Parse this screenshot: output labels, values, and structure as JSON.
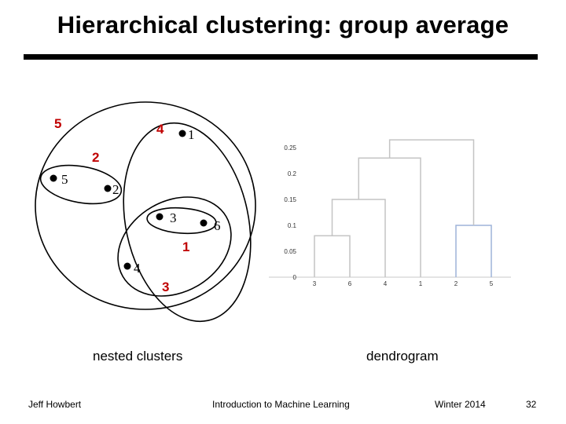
{
  "slide": {
    "title": "Hierarchical clustering: group average",
    "caption_left": "nested clusters",
    "caption_right": "dendrogram"
  },
  "footer": {
    "author": "Jeff Howbert",
    "course": "Introduction to Machine Learning",
    "term": "Winter 2014",
    "page": "32"
  },
  "nested_clusters": {
    "points": [
      {
        "label": "1"
      },
      {
        "label": "2"
      },
      {
        "label": "3"
      },
      {
        "label": "4"
      },
      {
        "label": "5"
      },
      {
        "label": "6"
      }
    ],
    "merge_order": [
      {
        "order": "1",
        "members": [
          "3",
          "6"
        ]
      },
      {
        "order": "2",
        "members": [
          "2",
          "5"
        ]
      },
      {
        "order": "3",
        "members": [
          "3",
          "6",
          "4"
        ]
      },
      {
        "order": "4",
        "members": [
          "3",
          "6",
          "4",
          "1"
        ]
      },
      {
        "order": "5",
        "members": [
          "1",
          "2",
          "3",
          "4",
          "5",
          "6"
        ]
      }
    ],
    "label_color": "#c00000"
  },
  "chart_data": {
    "type": "dendrogram",
    "title": "",
    "leaf_order": [
      "3",
      "6",
      "4",
      "1",
      "2",
      "5"
    ],
    "y_ticks": [
      "0",
      "0.05",
      "0.1",
      "0.15",
      "0.2",
      "0.25"
    ],
    "ylim": [
      0,
      0.27
    ],
    "merges": [
      {
        "left": "3",
        "right": "6",
        "height": 0.08
      },
      {
        "left": "2",
        "right": "5",
        "height": 0.1
      },
      {
        "left": "3,6",
        "right": "4",
        "height": 0.15
      },
      {
        "left": "3,6,4",
        "right": "1",
        "height": 0.23
      },
      {
        "left": "3,6,4,1",
        "right": "2,5",
        "height": 0.265
      }
    ]
  }
}
